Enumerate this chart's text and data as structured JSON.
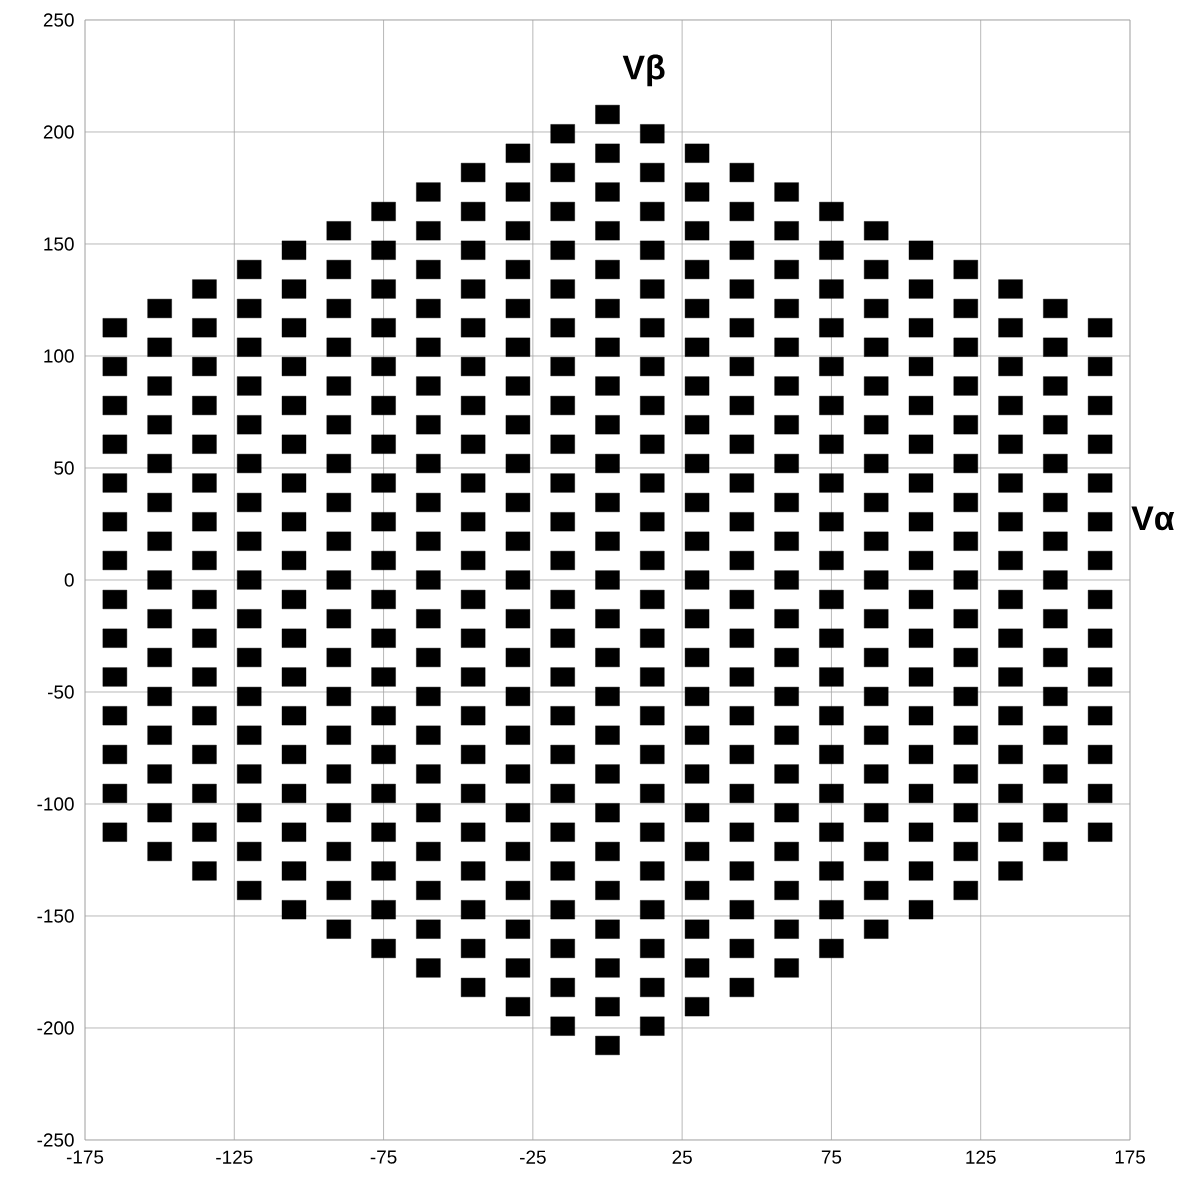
{
  "chart_data": {
    "type": "scatter",
    "xlabel": "Vα",
    "ylabel": "Vβ",
    "color": "#000000",
    "marker": "square",
    "grid": true,
    "xlim": [
      -175,
      175
    ],
    "xticks": [
      -175,
      -125,
      -75,
      -25,
      25,
      75,
      125,
      175
    ],
    "ylim": [
      -250,
      250
    ],
    "yticks": [
      -250,
      -200,
      -150,
      -100,
      -50,
      0,
      50,
      100,
      150,
      200,
      250
    ],
    "series": [
      {
        "x": [
          -165,
          -165,
          -165,
          -165,
          -165,
          -165,
          -165,
          -165,
          -165,
          -165,
          -165,
          -165,
          -165,
          -165
        ],
        "values": [
          112.6,
          95.3,
          77.9,
          60.6,
          43.3,
          26.0,
          8.7,
          -8.7,
          -26.0,
          -43.3,
          -60.6,
          -77.9,
          -95.3,
          -112.6
        ]
      },
      {
        "x": [
          -150,
          -150,
          -150,
          -150,
          -150,
          -150,
          -150,
          -150,
          -150,
          -150,
          -150,
          -150,
          -150,
          -150,
          -150
        ],
        "values": [
          121.2,
          103.9,
          86.6,
          69.3,
          52.0,
          34.6,
          17.3,
          0,
          -17.3,
          -34.6,
          -52.0,
          -69.3,
          -86.6,
          -103.9,
          -121.2
        ]
      },
      {
        "x": [
          -135,
          -135,
          -135,
          -135,
          -135,
          -135,
          -135,
          -135,
          -135,
          -135,
          -135,
          -135,
          -135,
          -135,
          -135,
          -135
        ],
        "values": [
          129.9,
          112.6,
          95.3,
          77.9,
          60.6,
          43.3,
          26.0,
          8.7,
          -8.7,
          -26.0,
          -43.3,
          -60.6,
          -77.9,
          -95.3,
          -112.6,
          -129.9
        ]
      },
      {
        "x": [
          -120,
          -120,
          -120,
          -120,
          -120,
          -120,
          -120,
          -120,
          -120,
          -120,
          -120,
          -120,
          -120,
          -120,
          -120,
          -120,
          -120
        ],
        "values": [
          138.6,
          121.2,
          103.9,
          86.6,
          69.3,
          52.0,
          34.6,
          17.3,
          0,
          -17.3,
          -34.6,
          -52.0,
          -69.3,
          -86.6,
          -103.9,
          -121.2,
          -138.6
        ]
      },
      {
        "x": [
          -105,
          -105,
          -105,
          -105,
          -105,
          -105,
          -105,
          -105,
          -105,
          -105,
          -105,
          -105,
          -105,
          -105,
          -105,
          -105,
          -105,
          -105
        ],
        "values": [
          147.2,
          129.9,
          112.6,
          95.3,
          77.9,
          60.6,
          43.3,
          26.0,
          8.7,
          -8.7,
          -26.0,
          -43.3,
          -60.6,
          -77.9,
          -95.3,
          -112.6,
          -129.9,
          -147.2
        ]
      },
      {
        "x": [
          -90,
          -90,
          -90,
          -90,
          -90,
          -90,
          -90,
          -90,
          -90,
          -90,
          -90,
          -90,
          -90,
          -90,
          -90,
          -90,
          -90,
          -90,
          -90
        ],
        "values": [
          155.9,
          138.6,
          121.2,
          103.9,
          86.6,
          69.3,
          52.0,
          34.6,
          17.3,
          0,
          -17.3,
          -34.6,
          -52.0,
          -69.3,
          -86.6,
          -103.9,
          -121.2,
          -138.6,
          -155.9
        ]
      },
      {
        "x": [
          -75,
          -75,
          -75,
          -75,
          -75,
          -75,
          -75,
          -75,
          -75,
          -75,
          -75,
          -75,
          -75,
          -75,
          -75,
          -75,
          -75,
          -75,
          -75,
          -75
        ],
        "values": [
          164.5,
          147.2,
          129.9,
          112.6,
          95.3,
          77.9,
          60.6,
          43.3,
          26.0,
          8.7,
          -8.7,
          -26.0,
          -43.3,
          -60.6,
          -77.9,
          -95.3,
          -112.6,
          -129.9,
          -147.2,
          -164.5
        ]
      },
      {
        "x": [
          -60,
          -60,
          -60,
          -60,
          -60,
          -60,
          -60,
          -60,
          -60,
          -60,
          -60,
          -60,
          -60,
          -60,
          -60,
          -60,
          -60,
          -60,
          -60,
          -60,
          -60
        ],
        "values": [
          173.2,
          155.9,
          138.6,
          121.2,
          103.9,
          86.6,
          69.3,
          52.0,
          34.6,
          17.3,
          0,
          -17.3,
          -34.6,
          -52.0,
          -69.3,
          -86.6,
          -103.9,
          -121.2,
          -138.6,
          -155.9,
          -173.2
        ]
      },
      {
        "x": [
          -45,
          -45,
          -45,
          -45,
          -45,
          -45,
          -45,
          -45,
          -45,
          -45,
          -45,
          -45,
          -45,
          -45,
          -45,
          -45,
          -45,
          -45,
          -45,
          -45,
          -45,
          -45
        ],
        "values": [
          181.9,
          164.5,
          147.2,
          129.9,
          112.6,
          95.3,
          77.9,
          60.6,
          43.3,
          26.0,
          8.7,
          -8.7,
          -26.0,
          -43.3,
          -60.6,
          -77.9,
          -95.3,
          -112.6,
          -129.9,
          -147.2,
          -164.5,
          -181.9
        ]
      },
      {
        "x": [
          -30,
          -30,
          -30,
          -30,
          -30,
          -30,
          -30,
          -30,
          -30,
          -30,
          -30,
          -30,
          -30,
          -30,
          -30,
          -30,
          -30,
          -30,
          -30,
          -30,
          -30,
          -30,
          -30
        ],
        "values": [
          190.5,
          173.2,
          155.9,
          138.6,
          121.2,
          103.9,
          86.6,
          69.3,
          52.0,
          34.6,
          17.3,
          0,
          -17.3,
          -34.6,
          -52.0,
          -69.3,
          -86.6,
          -103.9,
          -121.2,
          -138.6,
          -155.9,
          -173.2,
          -190.5
        ]
      },
      {
        "x": [
          -15,
          -15,
          -15,
          -15,
          -15,
          -15,
          -15,
          -15,
          -15,
          -15,
          -15,
          -15,
          -15,
          -15,
          -15,
          -15,
          -15,
          -15,
          -15,
          -15,
          -15,
          -15,
          -15,
          -15
        ],
        "values": [
          199.2,
          181.9,
          164.5,
          147.2,
          129.9,
          112.6,
          95.3,
          77.9,
          60.6,
          43.3,
          26.0,
          8.7,
          -8.7,
          -26.0,
          -43.3,
          -60.6,
          -77.9,
          -95.3,
          -112.6,
          -129.9,
          -147.2,
          -164.5,
          -181.9,
          -199.2
        ]
      },
      {
        "x": [
          0,
          0,
          0,
          0,
          0,
          0,
          0,
          0,
          0,
          0,
          0,
          0,
          0,
          0,
          0,
          0,
          0,
          0,
          0,
          0,
          0,
          0,
          0,
          0,
          0
        ],
        "values": [
          207.8,
          190.5,
          173.2,
          155.9,
          138.6,
          121.2,
          103.9,
          86.6,
          69.3,
          52.0,
          34.6,
          17.3,
          0,
          -17.3,
          -34.6,
          -52.0,
          -69.3,
          -86.6,
          -103.9,
          -121.2,
          -138.6,
          -155.9,
          -173.2,
          -190.5,
          -207.8
        ]
      },
      {
        "x": [
          15,
          15,
          15,
          15,
          15,
          15,
          15,
          15,
          15,
          15,
          15,
          15,
          15,
          15,
          15,
          15,
          15,
          15,
          15,
          15,
          15,
          15,
          15,
          15
        ],
        "values": [
          199.2,
          181.9,
          164.5,
          147.2,
          129.9,
          112.6,
          95.3,
          77.9,
          60.6,
          43.3,
          26.0,
          8.7,
          -8.7,
          -26.0,
          -43.3,
          -60.6,
          -77.9,
          -95.3,
          -112.6,
          -129.9,
          -147.2,
          -164.5,
          -181.9,
          -199.2
        ]
      },
      {
        "x": [
          30,
          30,
          30,
          30,
          30,
          30,
          30,
          30,
          30,
          30,
          30,
          30,
          30,
          30,
          30,
          30,
          30,
          30,
          30,
          30,
          30,
          30,
          30
        ],
        "values": [
          190.5,
          173.2,
          155.9,
          138.6,
          121.2,
          103.9,
          86.6,
          69.3,
          52.0,
          34.6,
          17.3,
          0,
          -17.3,
          -34.6,
          -52.0,
          -69.3,
          -86.6,
          -103.9,
          -121.2,
          -138.6,
          -155.9,
          -173.2,
          -190.5
        ]
      },
      {
        "x": [
          45,
          45,
          45,
          45,
          45,
          45,
          45,
          45,
          45,
          45,
          45,
          45,
          45,
          45,
          45,
          45,
          45,
          45,
          45,
          45,
          45,
          45
        ],
        "values": [
          181.9,
          164.5,
          147.2,
          129.9,
          112.6,
          95.3,
          77.9,
          60.6,
          43.3,
          26.0,
          8.7,
          -8.7,
          -26.0,
          -43.3,
          -60.6,
          -77.9,
          -95.3,
          -112.6,
          -129.9,
          -147.2,
          -164.5,
          -181.9
        ]
      },
      {
        "x": [
          60,
          60,
          60,
          60,
          60,
          60,
          60,
          60,
          60,
          60,
          60,
          60,
          60,
          60,
          60,
          60,
          60,
          60,
          60,
          60,
          60
        ],
        "values": [
          173.2,
          155.9,
          138.6,
          121.2,
          103.9,
          86.6,
          69.3,
          52.0,
          34.6,
          17.3,
          0,
          -17.3,
          -34.6,
          -52.0,
          -69.3,
          -86.6,
          -103.9,
          -121.2,
          -138.6,
          -155.9,
          -173.2
        ]
      },
      {
        "x": [
          75,
          75,
          75,
          75,
          75,
          75,
          75,
          75,
          75,
          75,
          75,
          75,
          75,
          75,
          75,
          75,
          75,
          75,
          75,
          75
        ],
        "values": [
          164.5,
          147.2,
          129.9,
          112.6,
          95.3,
          77.9,
          60.6,
          43.3,
          26.0,
          8.7,
          -8.7,
          -26.0,
          -43.3,
          -60.6,
          -77.9,
          -95.3,
          -112.6,
          -129.9,
          -147.2,
          -164.5
        ]
      },
      {
        "x": [
          90,
          90,
          90,
          90,
          90,
          90,
          90,
          90,
          90,
          90,
          90,
          90,
          90,
          90,
          90,
          90,
          90,
          90,
          90
        ],
        "values": [
          155.9,
          138.6,
          121.2,
          103.9,
          86.6,
          69.3,
          52.0,
          34.6,
          17.3,
          0,
          -17.3,
          -34.6,
          -52.0,
          -69.3,
          -86.6,
          -103.9,
          -121.2,
          -138.6,
          -155.9
        ]
      },
      {
        "x": [
          105,
          105,
          105,
          105,
          105,
          105,
          105,
          105,
          105,
          105,
          105,
          105,
          105,
          105,
          105,
          105,
          105,
          105
        ],
        "values": [
          147.2,
          129.9,
          112.6,
          95.3,
          77.9,
          60.6,
          43.3,
          26.0,
          8.7,
          -8.7,
          -26.0,
          -43.3,
          -60.6,
          -77.9,
          -95.3,
          -112.6,
          -129.9,
          -147.2
        ]
      },
      {
        "x": [
          120,
          120,
          120,
          120,
          120,
          120,
          120,
          120,
          120,
          120,
          120,
          120,
          120,
          120,
          120,
          120,
          120
        ],
        "values": [
          138.6,
          121.2,
          103.9,
          86.6,
          69.3,
          52.0,
          34.6,
          17.3,
          0,
          -17.3,
          -34.6,
          -52.0,
          -69.3,
          -86.6,
          -103.9,
          -121.2,
          -138.6
        ]
      },
      {
        "x": [
          135,
          135,
          135,
          135,
          135,
          135,
          135,
          135,
          135,
          135,
          135,
          135,
          135,
          135,
          135,
          135
        ],
        "values": [
          129.9,
          112.6,
          95.3,
          77.9,
          60.6,
          43.3,
          26.0,
          8.7,
          -8.7,
          -26.0,
          -43.3,
          -60.6,
          -77.9,
          -95.3,
          -112.6,
          -129.9
        ]
      },
      {
        "x": [
          150,
          150,
          150,
          150,
          150,
          150,
          150,
          150,
          150,
          150,
          150,
          150,
          150,
          150,
          150
        ],
        "values": [
          121.2,
          103.9,
          86.6,
          69.3,
          52.0,
          34.6,
          17.3,
          0,
          -17.3,
          -34.6,
          -52.0,
          -69.3,
          -86.6,
          -103.9,
          -121.2
        ]
      },
      {
        "x": [
          165,
          165,
          165,
          165,
          165,
          165,
          165,
          165,
          165,
          165,
          165,
          165,
          165,
          165
        ],
        "values": [
          112.6,
          95.3,
          77.9,
          60.6,
          43.3,
          26.0,
          8.7,
          -8.7,
          -26.0,
          -43.3,
          -60.6,
          -77.9,
          -95.3,
          -112.6
        ]
      }
    ]
  }
}
